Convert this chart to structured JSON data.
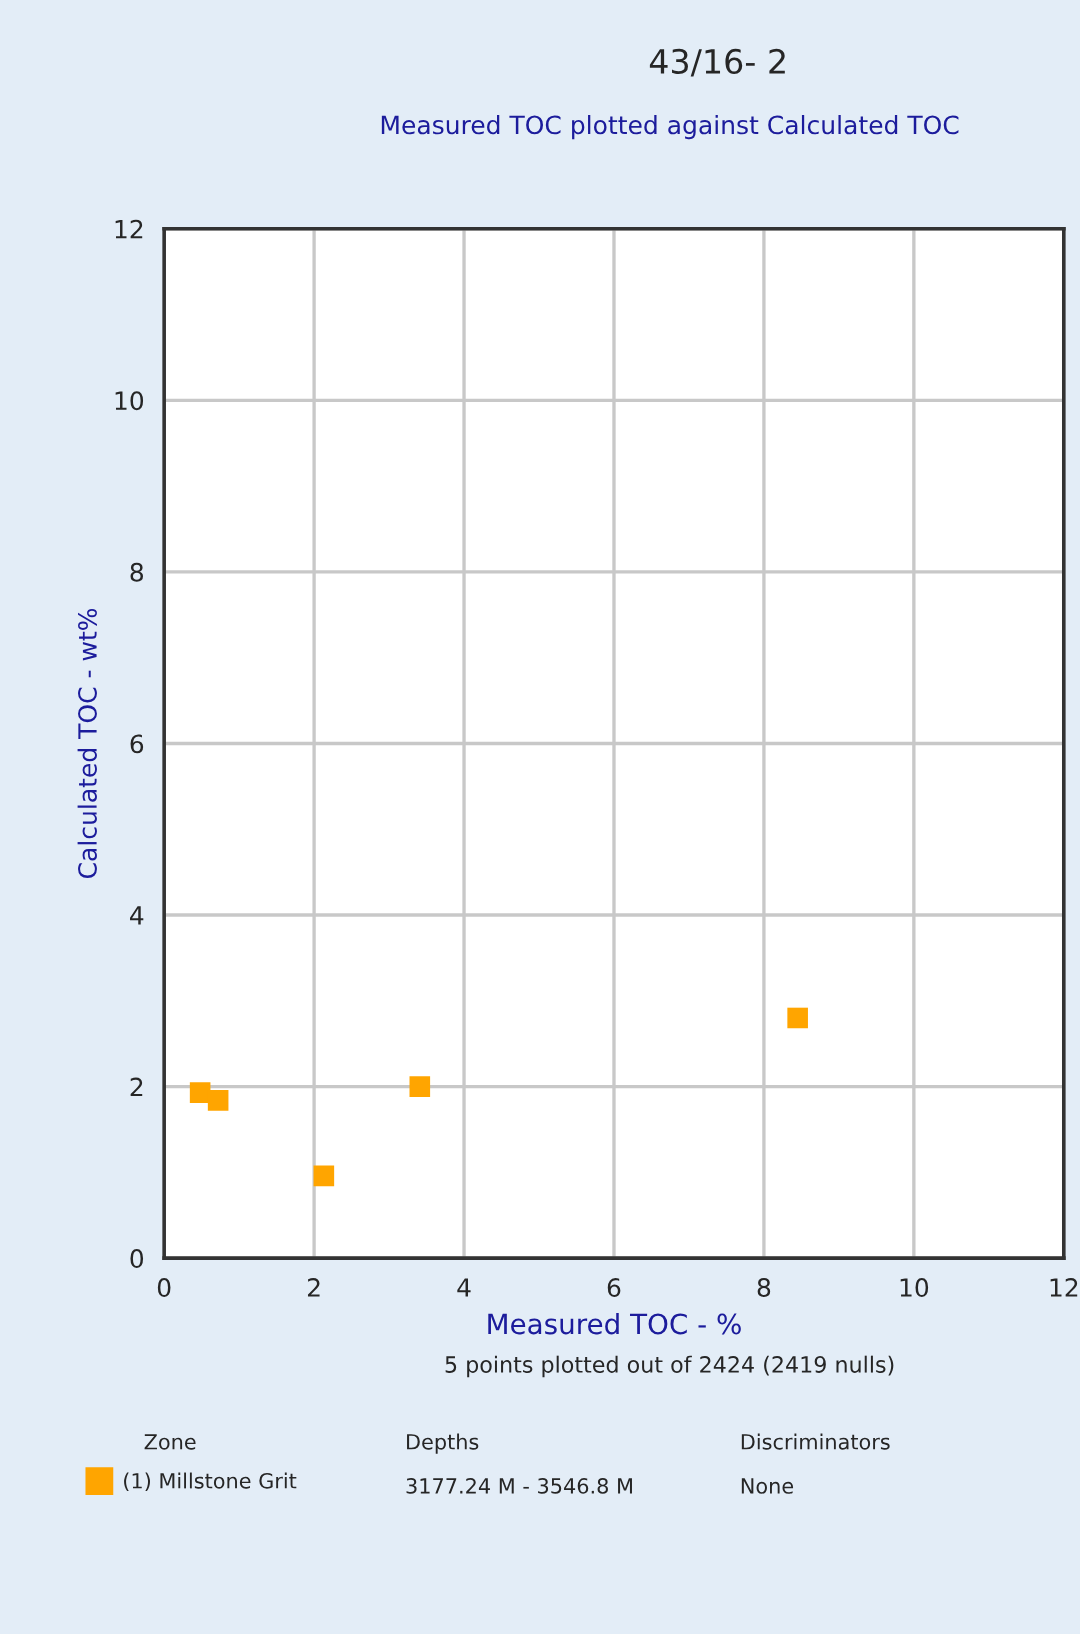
{
  "chart_data": {
    "type": "scatter",
    "title": "43/16- 2",
    "subtitle": "Measured TOC plotted against Calculated TOC",
    "xlabel": "Measured TOC - %",
    "ylabel": "Calculated TOC - wt%",
    "series": [
      {
        "name": "(1) Millstone Grit",
        "color": "#ffa500",
        "x": [
          0.48,
          0.72,
          2.13,
          3.41,
          8.45
        ],
        "values": [
          1.93,
          1.84,
          0.96,
          2.0,
          2.8
        ]
      }
    ],
    "xlim": [
      0,
      12
    ],
    "ylim": [
      0,
      12
    ],
    "xticks": [
      0,
      2,
      4,
      6,
      8,
      10,
      12
    ],
    "yticks": [
      0,
      2,
      4,
      6,
      8,
      10,
      12
    ],
    "grid": true,
    "marker": "square",
    "legend": "bottom",
    "annotations": [
      "5 points plotted out of 2424 (2419 nulls)",
      "Zone",
      "Depths",
      "Discriminators",
      "3177.24 M - 3546.8 M",
      "None"
    ]
  }
}
